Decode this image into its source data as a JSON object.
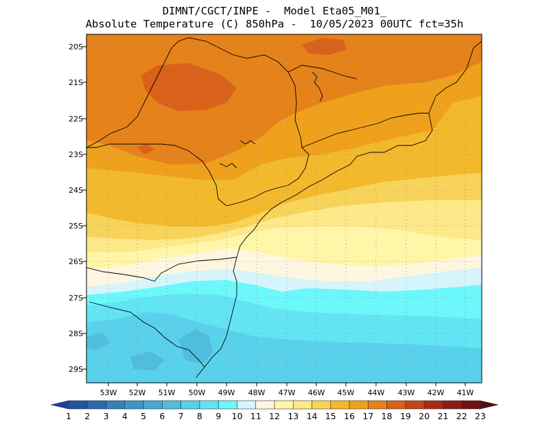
{
  "header": {
    "line1": "DIMNT/CGCT/INPE -  Model Eta05_M01_",
    "line2": "Absolute Temperature (C) 850hPa -  10/05/2023 00UTC fct=35h"
  },
  "map": {
    "lat_labels": [
      "20S",
      "21S",
      "22S",
      "23S",
      "24S",
      "25S",
      "26S",
      "27S",
      "28S",
      "29S"
    ],
    "lon_labels": [
      "53W",
      "52W",
      "51W",
      "50W",
      "49W",
      "48W",
      "47W",
      "46W",
      "45W",
      "44W",
      "43W",
      "42W",
      "41W"
    ]
  },
  "colorbar": {
    "levels": [
      "1",
      "2",
      "3",
      "4",
      "5",
      "6",
      "7",
      "8",
      "9",
      "10",
      "11",
      "12",
      "13",
      "14",
      "15",
      "16",
      "17",
      "18",
      "19",
      "20",
      "21",
      "22",
      "23"
    ],
    "colors": [
      "#1f3f9f",
      "#22559f",
      "#2a6aaa",
      "#3480b9",
      "#3e95c5",
      "#48a9d2",
      "#50bdde",
      "#59d1ea",
      "#62e4f3",
      "#6cf7fb",
      "#d6f5fb",
      "#fff6e0",
      "#fff6a8",
      "#fde98a",
      "#f8d35a",
      "#f3b92c",
      "#efa11c",
      "#e6821a",
      "#d9611a",
      "#c54418",
      "#a82c15",
      "#8a1d14",
      "#6e1212",
      "#5a0d10"
    ]
  },
  "colors": {
    "t9": "#62e4f3",
    "t10": "#6cf7fb",
    "t11": "#d6f5fb",
    "t12": "#fff6e0",
    "t13": "#fff6a8",
    "t14": "#fde98a",
    "t15": "#f8d35a",
    "t16": "#f3b92c",
    "t17": "#efa11c",
    "t18": "#e6821a",
    "t19": "#d9611a",
    "t8": "#59d1ea",
    "t7": "#50bdde"
  }
}
